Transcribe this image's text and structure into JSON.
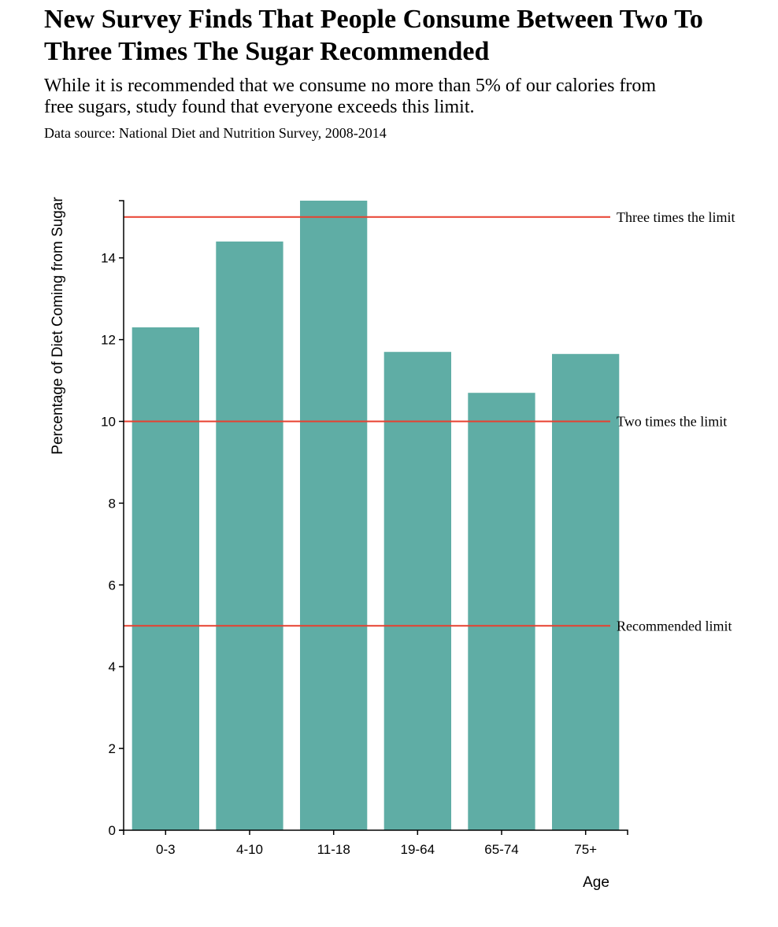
{
  "header": {
    "title": "New Survey Finds That People Consume Between Two To Three Times The Sugar Recommended",
    "subtitle": "While it is recommended that we consume no more than 5% of our calories from free sugars, study found that everyone exceeds this limit.",
    "source": "Data source: National Diet and Nutrition Survey, 2008-2014"
  },
  "chart_data": {
    "type": "bar",
    "title": "New Survey Finds That People Consume Between Two To Three Times The Sugar Recommended",
    "subtitle": "While it is recommended that we consume no more than 5% of our calories from free sugars, study found that everyone exceeds this limit.",
    "xlabel": "Age",
    "ylabel": "Percentage of Diet Coming from Sugar",
    "categories": [
      "0-3",
      "4-10",
      "11-18",
      "19-64",
      "65-74",
      "75+"
    ],
    "values": [
      12.3,
      14.4,
      15.4,
      11.7,
      10.7,
      11.65
    ],
    "ylim": [
      0,
      15.4
    ],
    "yticks": [
      0,
      2,
      4,
      6,
      8,
      10,
      12,
      14
    ],
    "grid": false,
    "reference_lines": [
      {
        "value": 15,
        "label": "Three times the limit"
      },
      {
        "value": 10,
        "label": "Two times the limit"
      },
      {
        "value": 5,
        "label": "Recommended limit"
      }
    ],
    "colors": {
      "bar": "#5fada5",
      "reference_line": "#e8402f",
      "axis": "#000000"
    }
  }
}
